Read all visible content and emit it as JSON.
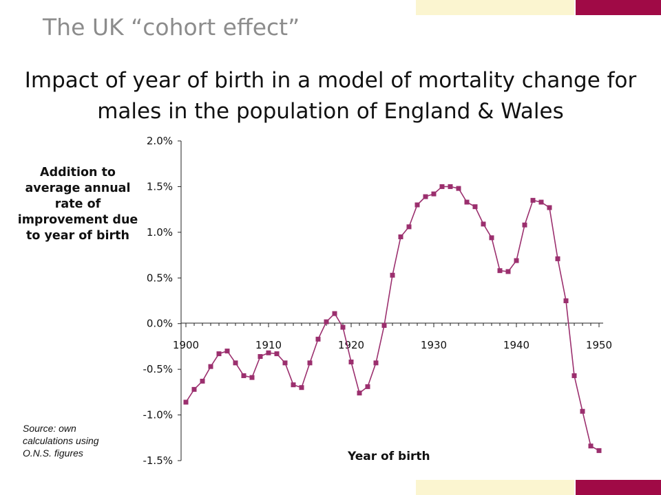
{
  "slide_title": "The UK “cohort effect”",
  "colors": {
    "accent_cream": "#fbf5d0",
    "accent_maroon": "#a00a46",
    "series": "#9b2f6e",
    "text_gray": "#8c8c8c"
  },
  "source_note": "Source: own calculations using O.N.S. figures",
  "chart_data": {
    "type": "line",
    "title": "Impact of year of birth in a model of mortality change for males in the population of England & Wales",
    "xlabel": "Year of birth",
    "ylabel": "Addition to average annual rate of improvement due to year of birth",
    "xlim": [
      1900,
      1950
    ],
    "ylim": [
      -1.5,
      2.0
    ],
    "x_ticks": [
      1900,
      1910,
      1920,
      1930,
      1940,
      1950
    ],
    "x_tick_labels": [
      "1900",
      "1910",
      "1920",
      "1930",
      "1940",
      "1950"
    ],
    "y_ticks": [
      2.0,
      1.5,
      1.0,
      0.5,
      0.0,
      -0.5,
      -1.0,
      -1.5
    ],
    "y_tick_labels": [
      "2.0%",
      "1.5%",
      "1.0%",
      "0.5%",
      "0.0%",
      "-0.5%",
      "-1.0%",
      "-1.5%"
    ],
    "grid": false,
    "legend": "none",
    "marker": "square",
    "series": [
      {
        "x": [
          1900,
          1901,
          1902,
          1903,
          1904,
          1905,
          1906,
          1907,
          1908,
          1909,
          1910,
          1911,
          1912,
          1913,
          1914,
          1915,
          1916,
          1917,
          1918,
          1919,
          1920,
          1921,
          1922,
          1923,
          1924,
          1925,
          1926,
          1927,
          1928,
          1929,
          1930,
          1931,
          1932,
          1933,
          1934,
          1935,
          1936,
          1937,
          1938,
          1939,
          1940,
          1941,
          1942,
          1943,
          1944,
          1945,
          1946,
          1947,
          1948,
          1949,
          1950
        ],
        "y": [
          -0.86,
          -0.72,
          -0.63,
          -0.47,
          -0.33,
          -0.3,
          -0.43,
          -0.57,
          -0.59,
          -0.36,
          -0.32,
          -0.33,
          -0.43,
          -0.67,
          -0.7,
          -0.43,
          -0.17,
          0.02,
          0.11,
          -0.04,
          -0.42,
          -0.76,
          -0.69,
          -0.43,
          -0.02,
          0.53,
          0.95,
          1.06,
          1.3,
          1.39,
          1.42,
          1.5,
          1.5,
          1.48,
          1.33,
          1.28,
          1.09,
          0.94,
          0.58,
          0.57,
          0.69,
          1.08,
          1.35,
          1.33,
          1.27,
          0.71,
          0.25,
          -0.57,
          -0.96,
          -1.34,
          -1.39
        ]
      }
    ]
  }
}
